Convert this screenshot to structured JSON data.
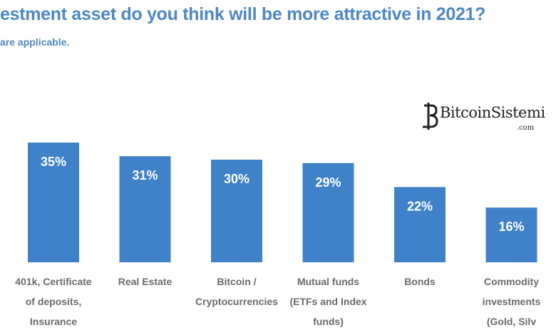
{
  "header": {
    "title": "estment asset do you think will be more attractive in 2021?",
    "subtitle": "are applicable."
  },
  "chart_data": {
    "type": "bar",
    "categories": [
      [
        "401k, Certificate",
        "of deposits,",
        "Insurance"
      ],
      [
        "Real Estate"
      ],
      [
        "Bitcoin /",
        "Cryptocurrencies"
      ],
      [
        "Mutual funds",
        "(ETFs and Index",
        "funds)"
      ],
      [
        "Bonds"
      ],
      [
        "Commodity",
        "investments",
        "(Gold, Silv"
      ]
    ],
    "values": [
      35,
      31,
      30,
      29,
      22,
      16
    ],
    "data_labels": [
      "35%",
      "31%",
      "30%",
      "29%",
      "22%",
      "16%"
    ],
    "ylim": [
      0,
      35
    ],
    "grid": false,
    "bar_color": "#3f82c9",
    "label_color": "#ffffff"
  },
  "watermark": {
    "text": "BitcoinSistemi",
    "suffix": ".com"
  }
}
